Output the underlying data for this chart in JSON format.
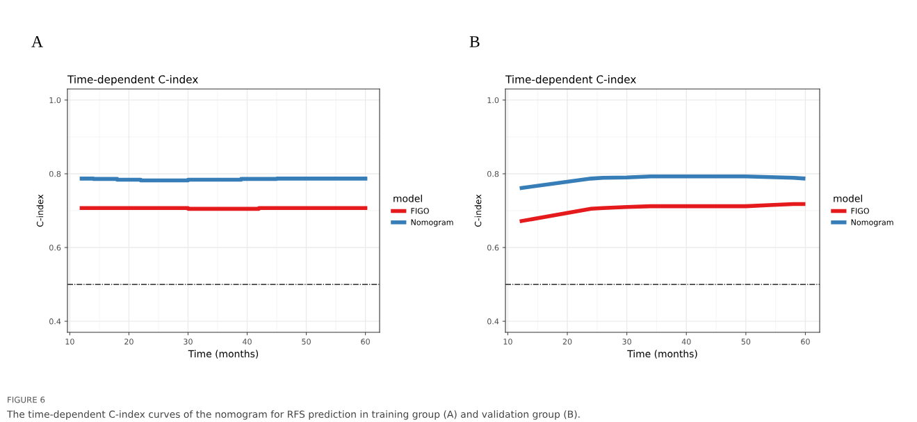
{
  "chart_data": [
    {
      "type": "step",
      "title": "Time-dependent C-index",
      "xlabel": "Time (months)",
      "ylabel": "C-index",
      "legend_title": "model",
      "legend": "right",
      "grid": true,
      "xlim": [
        9.6,
        62.4
      ],
      "xticks": [
        10,
        20,
        30,
        40,
        50,
        60
      ],
      "ylim": [
        0.37,
        1.03
      ],
      "yticks": [
        {
          "value": 0.4,
          "label": "0.4"
        },
        {
          "value": 0.6,
          "label": "0.6"
        },
        {
          "value": 0.8,
          "label": "0.8"
        },
        {
          "value": 1.0,
          "label": "1.0"
        }
      ],
      "series": [
        {
          "name": "FIGO",
          "color": "#e41a1c",
          "x": [
            12,
            30,
            42,
            60
          ],
          "values": [
            0.707,
            0.705,
            0.707,
            0.707
          ]
        },
        {
          "name": "Nomogram",
          "color": "#377eb8",
          "x": [
            12,
            14,
            18,
            22,
            30,
            39,
            45,
            60
          ],
          "values": [
            0.787,
            0.786,
            0.784,
            0.782,
            0.784,
            0.786,
            0.787,
            0.787
          ]
        }
      ],
      "ref_lines": [
        {
          "axis": "y",
          "value": 0.5,
          "color": "#000000",
          "line_style": "dashdot"
        }
      ],
      "annotations": [
        "A"
      ]
    },
    {
      "type": "line",
      "title": "Time-dependent C-index",
      "xlabel": "Time (months)",
      "ylabel": "C-index",
      "legend_title": "model",
      "legend": "right",
      "grid": true,
      "xlim": [
        9.6,
        62.4
      ],
      "xticks": [
        10,
        20,
        30,
        40,
        50,
        60
      ],
      "ylim": [
        0.37,
        1.03
      ],
      "yticks": [
        {
          "value": 0.4,
          "label": "0.4"
        },
        {
          "value": 0.6,
          "label": "0.6"
        },
        {
          "value": 0.8,
          "label": "0.8"
        },
        {
          "value": 1.0,
          "label": "1.0"
        }
      ],
      "series": [
        {
          "name": "FIGO",
          "color": "#e41a1c",
          "x": [
            12,
            24,
            26,
            30,
            34,
            50,
            54,
            58,
            60
          ],
          "values": [
            0.671,
            0.705,
            0.707,
            0.71,
            0.712,
            0.712,
            0.715,
            0.718,
            0.718
          ]
        },
        {
          "name": "Nomogram",
          "color": "#377eb8",
          "x": [
            12,
            24,
            26,
            30,
            34,
            50,
            54,
            58,
            60
          ],
          "values": [
            0.761,
            0.787,
            0.789,
            0.79,
            0.793,
            0.793,
            0.791,
            0.789,
            0.787
          ]
        }
      ],
      "ref_lines": [
        {
          "axis": "y",
          "value": 0.5,
          "color": "#000000",
          "line_style": "dashdot"
        }
      ],
      "annotations": [
        "B",
        "FIGURE 6",
        "The time-dependent C-index curves of the nomogram for RFS prediction in training group (A) and validation group (B)."
      ]
    }
  ]
}
